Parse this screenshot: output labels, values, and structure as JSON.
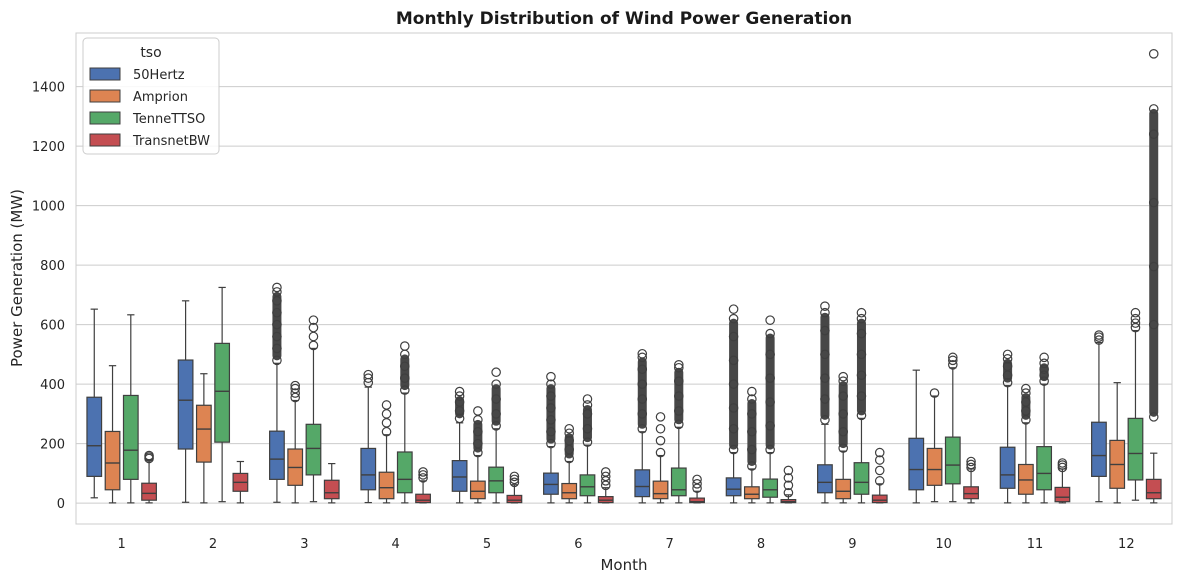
{
  "chart_data": {
    "type": "box",
    "title": "Monthly Distribution of Wind Power Generation",
    "xlabel": "Month",
    "ylabel": "Power Generation (MW)",
    "ylim": [
      -70,
      1580
    ],
    "yticks": [
      0,
      200,
      400,
      600,
      800,
      1000,
      1200,
      1400
    ],
    "grid": "horizontal",
    "legend": {
      "title": "tso",
      "placement": "top-left"
    },
    "categories": [
      "1",
      "2",
      "3",
      "4",
      "5",
      "6",
      "7",
      "8",
      "9",
      "10",
      "11",
      "12"
    ],
    "series": [
      {
        "name": "50Hertz",
        "color": "#4c72b0",
        "boxes": [
          {
            "min": 18,
            "q1": 90,
            "median": 193,
            "q3": 356,
            "max": 652,
            "outliers": []
          },
          {
            "min": 3,
            "q1": 182,
            "median": 346,
            "q3": 481,
            "max": 680,
            "outliers": []
          },
          {
            "min": 3,
            "q1": 80,
            "median": 148,
            "q3": 242,
            "max": 470,
            "outliers": [
              480,
              520,
              560,
              600,
              640,
              680,
              710,
              725
            ]
          },
          {
            "min": 2,
            "q1": 45,
            "median": 95,
            "q3": 184,
            "max": 390,
            "outliers": [
              405,
              420,
              432
            ]
          },
          {
            "min": 1,
            "q1": 40,
            "median": 88,
            "q3": 143,
            "max": 270,
            "outliers": [
              285,
              310,
              340,
              360,
              375
            ]
          },
          {
            "min": 1,
            "q1": 30,
            "median": 63,
            "q3": 101,
            "max": 190,
            "outliers": [
              200,
              240,
              280,
              320,
              360,
              400,
              425
            ]
          },
          {
            "min": 1,
            "q1": 22,
            "median": 56,
            "q3": 112,
            "max": 240,
            "outliers": [
              250,
              300,
              350,
              400,
              450,
              490,
              502
            ]
          },
          {
            "min": 1,
            "q1": 25,
            "median": 47,
            "q3": 85,
            "max": 170,
            "outliers": [
              180,
              250,
              320,
              400,
              480,
              560,
              620,
              652
            ]
          },
          {
            "min": 1,
            "q1": 35,
            "median": 70,
            "q3": 129,
            "max": 265,
            "outliers": [
              280,
              350,
              420,
              500,
              580,
              640,
              662
            ]
          },
          {
            "min": 1,
            "q1": 45,
            "median": 113,
            "q3": 218,
            "max": 447,
            "outliers": []
          },
          {
            "min": 1,
            "q1": 50,
            "median": 95,
            "q3": 188,
            "max": 395,
            "outliers": [
              405,
              430,
              460,
              485,
              500
            ]
          },
          {
            "min": 5,
            "q1": 90,
            "median": 160,
            "q3": 272,
            "max": 540,
            "outliers": [
              548,
              558,
              565
            ]
          }
        ]
      },
      {
        "name": "Amprion",
        "color": "#dd8452",
        "boxes": [
          {
            "min": 1,
            "q1": 45,
            "median": 135,
            "q3": 241,
            "max": 462,
            "outliers": []
          },
          {
            "min": 1,
            "q1": 138,
            "median": 249,
            "q3": 329,
            "max": 435,
            "outliers": []
          },
          {
            "min": 1,
            "q1": 60,
            "median": 120,
            "q3": 182,
            "max": 345,
            "outliers": [
              355,
              370,
              385,
              395
            ]
          },
          {
            "min": 1,
            "q1": 15,
            "median": 52,
            "q3": 104,
            "max": 230,
            "outliers": [
              240,
              270,
              300,
              330
            ]
          },
          {
            "min": 1,
            "q1": 15,
            "median": 40,
            "q3": 74,
            "max": 160,
            "outliers": [
              170,
              200,
              240,
              280,
              310
            ]
          },
          {
            "min": 1,
            "q1": 15,
            "median": 35,
            "q3": 66,
            "max": 140,
            "outliers": [
              150,
              180,
              210,
              235,
              250
            ]
          },
          {
            "min": 1,
            "q1": 15,
            "median": 32,
            "q3": 74,
            "max": 160,
            "outliers": [
              170,
              210,
              250,
              290
            ]
          },
          {
            "min": 1,
            "q1": 15,
            "median": 30,
            "q3": 55,
            "max": 115,
            "outliers": [
              125,
              180,
              240,
              300,
              350,
              375
            ]
          },
          {
            "min": 1,
            "q1": 15,
            "median": 40,
            "q3": 80,
            "max": 175,
            "outliers": [
              185,
              240,
              300,
              360,
              410,
              425
            ]
          },
          {
            "min": 5,
            "q1": 60,
            "median": 113,
            "q3": 184,
            "max": 360,
            "outliers": [
              370
            ]
          },
          {
            "min": 1,
            "q1": 30,
            "median": 78,
            "q3": 130,
            "max": 270,
            "outliers": [
              280,
              310,
              340,
              370,
              385
            ]
          },
          {
            "min": 1,
            "q1": 50,
            "median": 130,
            "q3": 211,
            "max": 405,
            "outliers": []
          }
        ]
      },
      {
        "name": "TenneTTSO",
        "color": "#55a868",
        "boxes": [
          {
            "min": 1,
            "q1": 80,
            "median": 178,
            "q3": 362,
            "max": 633,
            "outliers": []
          },
          {
            "min": 5,
            "q1": 205,
            "median": 376,
            "q3": 537,
            "max": 725,
            "outliers": []
          },
          {
            "min": 5,
            "q1": 95,
            "median": 184,
            "q3": 265,
            "max": 520,
            "outliers": [
              530,
              560,
              590,
              615
            ]
          },
          {
            "min": 1,
            "q1": 35,
            "median": 80,
            "q3": 172,
            "max": 370,
            "outliers": [
              380,
              420,
              460,
              500,
              528
            ]
          },
          {
            "min": 1,
            "q1": 35,
            "median": 75,
            "q3": 121,
            "max": 250,
            "outliers": [
              260,
              300,
              350,
              400,
              440
            ]
          },
          {
            "min": 1,
            "q1": 25,
            "median": 55,
            "q3": 95,
            "max": 195,
            "outliers": [
              205,
              250,
              300,
              330,
              350
            ]
          },
          {
            "min": 1,
            "q1": 25,
            "median": 45,
            "q3": 118,
            "max": 255,
            "outliers": [
              265,
              310,
              360,
              410,
              455,
              465
            ]
          },
          {
            "min": 1,
            "q1": 20,
            "median": 45,
            "q3": 81,
            "max": 170,
            "outliers": [
              180,
              260,
              340,
              420,
              500,
              570,
              615
            ]
          },
          {
            "min": 1,
            "q1": 30,
            "median": 70,
            "q3": 136,
            "max": 285,
            "outliers": [
              295,
              360,
              430,
              500,
              570,
              620,
              640
            ]
          },
          {
            "min": 5,
            "q1": 65,
            "median": 128,
            "q3": 222,
            "max": 455,
            "outliers": [
              465,
              480,
              490
            ]
          },
          {
            "min": 1,
            "q1": 45,
            "median": 100,
            "q3": 190,
            "max": 400,
            "outliers": [
              410,
              430,
              450,
              470,
              490
            ]
          },
          {
            "min": 10,
            "q1": 78,
            "median": 167,
            "q3": 285,
            "max": 580,
            "outliers": [
              590,
              605,
              620,
              640
            ]
          }
        ]
      },
      {
        "name": "TransnetBW",
        "color": "#c44e52",
        "boxes": [
          {
            "min": 1,
            "q1": 10,
            "median": 33,
            "q3": 67,
            "max": 145,
            "outliers": [
              150,
              155,
              160
            ]
          },
          {
            "min": 1,
            "q1": 40,
            "median": 70,
            "q3": 100,
            "max": 140,
            "outliers": []
          },
          {
            "min": 1,
            "q1": 15,
            "median": 35,
            "q3": 77,
            "max": 133,
            "outliers": []
          },
          {
            "min": 1,
            "q1": 2,
            "median": 10,
            "q3": 30,
            "max": 75,
            "outliers": [
              85,
              95,
              105
            ]
          },
          {
            "min": 1,
            "q1": 2,
            "median": 10,
            "q3": 26,
            "max": 62,
            "outliers": [
              70,
              80,
              90
            ]
          },
          {
            "min": 1,
            "q1": 2,
            "median": 10,
            "q3": 22,
            "max": 52,
            "outliers": [
              60,
              75,
              90,
              105
            ]
          },
          {
            "min": 1,
            "q1": 2,
            "median": 5,
            "q3": 17,
            "max": 40,
            "outliers": [
              50,
              65,
              80
            ]
          },
          {
            "min": 1,
            "q1": 2,
            "median": 5,
            "q3": 12,
            "max": 28,
            "outliers": [
              35,
              60,
              85,
              110
            ]
          },
          {
            "min": 1,
            "q1": 2,
            "median": 10,
            "q3": 27,
            "max": 65,
            "outliers": [
              75,
              110,
              145,
              170
            ]
          },
          {
            "min": 1,
            "q1": 15,
            "median": 32,
            "q3": 55,
            "max": 115,
            "outliers": [
              120,
              130,
              140
            ]
          },
          {
            "min": 1,
            "q1": 5,
            "median": 20,
            "q3": 53,
            "max": 115,
            "outliers": [
              120,
              128,
              135
            ]
          },
          {
            "min": 1,
            "q1": 15,
            "median": 35,
            "q3": 80,
            "max": 168,
            "outliers": [
              290,
              600,
              795,
              1010,
              1240,
              1325,
              1510
            ]
          }
        ]
      }
    ]
  }
}
